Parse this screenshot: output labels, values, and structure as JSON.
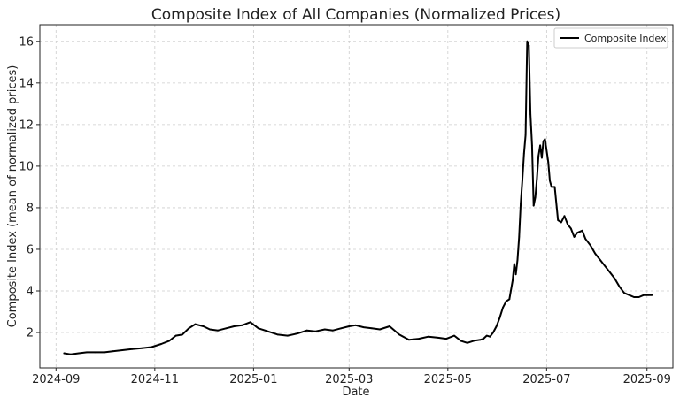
{
  "chart_data": {
    "type": "line",
    "title": "Composite Index of All Companies (Normalized Prices)",
    "xlabel": "Date",
    "ylabel": "Composite Index (mean of normalized prices)",
    "x_ticks": [
      "2024-09",
      "2024-11",
      "2025-01",
      "2025-03",
      "2025-05",
      "2025-07",
      "2025-09"
    ],
    "y_ticks": [
      2,
      4,
      6,
      8,
      10,
      12,
      14,
      16
    ],
    "xlim": [
      "2024-08-22",
      "2025-09-17"
    ],
    "ylim": [
      0.3,
      16.8
    ],
    "grid": true,
    "legend": "top-right",
    "series": [
      {
        "name": "Composite Index",
        "color": "#000000",
        "x": [
          "2024-09-06",
          "2024-09-10",
          "2024-09-15",
          "2024-09-20",
          "2024-09-25",
          "2024-10-01",
          "2024-10-06",
          "2024-10-12",
          "2024-10-18",
          "2024-10-24",
          "2024-10-30",
          "2024-11-05",
          "2024-11-10",
          "2024-11-14",
          "2024-11-18",
          "2024-11-22",
          "2024-11-26",
          "2024-12-01",
          "2024-12-05",
          "2024-12-10",
          "2024-12-15",
          "2024-12-20",
          "2024-12-25",
          "2024-12-30",
          "2025-01-04",
          "2025-01-10",
          "2025-01-16",
          "2025-01-22",
          "2025-01-28",
          "2025-02-03",
          "2025-02-08",
          "2025-02-14",
          "2025-02-19",
          "2025-02-24",
          "2025-03-01",
          "2025-03-05",
          "2025-03-10",
          "2025-03-15",
          "2025-03-20",
          "2025-03-26",
          "2025-04-01",
          "2025-04-07",
          "2025-04-13",
          "2025-04-19",
          "2025-04-25",
          "2025-04-30",
          "2025-05-05",
          "2025-05-09",
          "2025-05-13",
          "2025-05-17",
          "2025-05-21",
          "2025-05-23",
          "2025-05-25",
          "2025-05-27",
          "2025-05-29",
          "2025-05-31",
          "2025-06-02",
          "2025-06-04",
          "2025-06-06",
          "2025-06-08",
          "2025-06-10",
          "2025-06-11",
          "2025-06-12",
          "2025-06-13",
          "2025-06-14",
          "2025-06-15",
          "2025-06-16",
          "2025-06-17",
          "2025-06-18",
          "2025-06-19",
          "2025-06-20",
          "2025-06-21",
          "2025-06-22",
          "2025-06-23",
          "2025-06-24",
          "2025-06-25",
          "2025-06-26",
          "2025-06-27",
          "2025-06-28",
          "2025-06-29",
          "2025-06-30",
          "2025-07-02",
          "2025-07-03",
          "2025-07-04",
          "2025-07-06",
          "2025-07-08",
          "2025-07-10",
          "2025-07-12",
          "2025-07-14",
          "2025-07-16",
          "2025-07-18",
          "2025-07-20",
          "2025-07-23",
          "2025-07-25",
          "2025-07-28",
          "2025-07-31",
          "2025-08-03",
          "2025-08-06",
          "2025-08-09",
          "2025-08-12",
          "2025-08-15",
          "2025-08-18",
          "2025-08-21",
          "2025-08-24",
          "2025-08-27",
          "2025-08-30",
          "2025-09-02",
          "2025-09-04"
        ],
        "y": [
          1.0,
          0.95,
          1.0,
          1.05,
          1.05,
          1.05,
          1.1,
          1.15,
          1.2,
          1.25,
          1.3,
          1.45,
          1.6,
          1.85,
          1.9,
          2.2,
          2.4,
          2.3,
          2.15,
          2.1,
          2.2,
          2.3,
          2.35,
          2.5,
          2.2,
          2.05,
          1.9,
          1.85,
          1.95,
          2.1,
          2.05,
          2.15,
          2.1,
          2.2,
          2.3,
          2.35,
          2.25,
          2.2,
          2.15,
          2.3,
          1.9,
          1.65,
          1.7,
          1.8,
          1.75,
          1.7,
          1.85,
          1.6,
          1.5,
          1.6,
          1.65,
          1.7,
          1.85,
          1.8,
          2.0,
          2.3,
          2.7,
          3.2,
          3.5,
          3.6,
          4.5,
          5.3,
          4.8,
          5.5,
          6.6,
          8.2,
          9.3,
          10.6,
          11.5,
          16.0,
          15.8,
          12.5,
          11.0,
          8.1,
          8.5,
          9.4,
          10.5,
          11.0,
          10.4,
          11.2,
          11.3,
          10.2,
          9.3,
          9.0,
          9.0,
          7.4,
          7.3,
          7.6,
          7.2,
          7.0,
          6.6,
          6.8,
          6.9,
          6.5,
          6.2,
          5.8,
          5.5,
          5.2,
          4.9,
          4.6,
          4.2,
          3.9,
          3.8,
          3.7,
          3.7,
          3.8,
          3.8,
          3.8
        ]
      }
    ]
  }
}
